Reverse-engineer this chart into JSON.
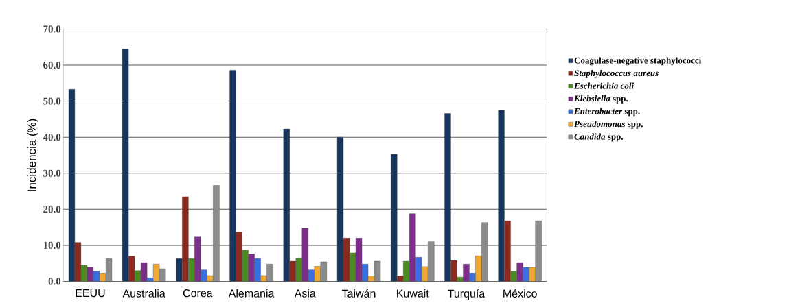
{
  "chart_data": {
    "type": "bar",
    "ylabel": "Incidencia (%)",
    "categories": [
      "EEUU",
      "Australia",
      "Corea",
      "Alemania",
      "Asia",
      "Taiwán",
      "Kuwait",
      "Turquía",
      "México"
    ],
    "series": [
      {
        "name": "Coagulase-negative staphylococci",
        "color": "#17365d",
        "values": [
          53.3,
          64.5,
          6.3,
          58.6,
          42.3,
          40.0,
          35.3,
          46.6,
          47.5
        ]
      },
      {
        "name": "*Staphylococcus aureus*",
        "color": "#8b2a1e",
        "values": [
          10.8,
          7.0,
          23.5,
          13.7,
          5.6,
          12.0,
          1.5,
          5.8,
          16.8
        ]
      },
      {
        "name": "*Escherichia coli*",
        "color": "#4e8a24",
        "values": [
          4.5,
          3.0,
          6.3,
          8.7,
          6.5,
          7.9,
          5.6,
          1.2,
          2.8
        ]
      },
      {
        "name": "*Klebsiella* spp.",
        "color": "#7b2e8a",
        "values": [
          4.0,
          5.2,
          12.5,
          7.6,
          14.8,
          12.0,
          18.8,
          4.8,
          5.2
        ]
      },
      {
        "name": "*Enterobacter* spp.",
        "color": "#3a6fe0",
        "values": [
          2.8,
          1.0,
          3.2,
          6.3,
          3.2,
          4.8,
          6.7,
          2.3,
          3.9
        ]
      },
      {
        "name": "*Pseudomonas* spp.",
        "color": "#f0a830",
        "values": [
          2.3,
          4.8,
          1.6,
          1.6,
          4.2,
          1.5,
          4.1,
          7.1,
          3.9
        ]
      },
      {
        "name": "*Candida* spp.",
        "color": "#8c8c8c",
        "values": [
          6.3,
          3.5,
          26.6,
          4.8,
          5.4,
          5.6,
          11.0,
          16.3,
          16.8
        ]
      }
    ],
    "ylim": [
      0,
      70
    ],
    "yticks": [
      {
        "value": 0,
        "label": "0.0"
      },
      {
        "value": 10,
        "label": "10.0"
      },
      {
        "value": 20,
        "label": "20.0"
      },
      {
        "value": 30,
        "label": "30.0"
      },
      {
        "value": 40,
        "label": "40.0"
      },
      {
        "value": 50,
        "label": "50.0"
      },
      {
        "value": 60,
        "label": "60.0"
      },
      {
        "value": 70,
        "label": "70.0"
      }
    ],
    "grid": "y",
    "legend": "right"
  }
}
